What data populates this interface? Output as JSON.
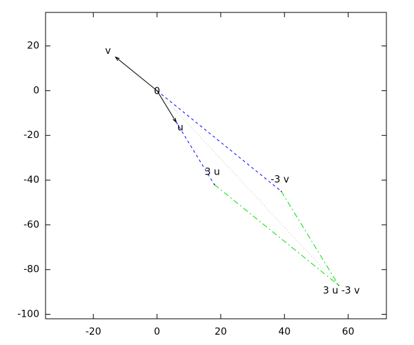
{
  "chart_data": {
    "type": "vector",
    "xlim": [
      -35,
      72
    ],
    "ylim": [
      -102,
      35
    ],
    "xticks": [
      -20,
      0,
      20,
      40,
      60
    ],
    "yticks": [
      20,
      0,
      -20,
      -40,
      -60,
      -80,
      -100
    ],
    "grid": false,
    "points": [
      {
        "label": "0",
        "x": 0,
        "y": 0
      },
      {
        "label": "v",
        "x": -13,
        "y": 15
      },
      {
        "label": "u",
        "x": 6,
        "y": -14
      },
      {
        "label": "3 u",
        "x": 18,
        "y": -42
      },
      {
        "label": "-3 v",
        "x": 39,
        "y": -45
      },
      {
        "label": "3 u -3 v",
        "x": 57,
        "y": -87
      }
    ],
    "series": [
      {
        "color": "#000000",
        "style": "solid",
        "arrow": true,
        "x": [
          0,
          -13
        ],
        "y": [
          0,
          15
        ]
      },
      {
        "color": "#000000",
        "style": "solid",
        "arrow": true,
        "x": [
          0,
          6
        ],
        "y": [
          0,
          -14
        ]
      },
      {
        "color": "#0000ff",
        "style": "dashed",
        "arrow": false,
        "x": [
          0,
          39
        ],
        "y": [
          0,
          -45
        ]
      },
      {
        "color": "#0000ff",
        "style": "dashed",
        "arrow": false,
        "x": [
          6,
          18
        ],
        "y": [
          -14,
          -42
        ]
      },
      {
        "color": "#00dd00",
        "style": "dashdot",
        "arrow": false,
        "x": [
          18,
          57
        ],
        "y": [
          -42,
          -87
        ]
      },
      {
        "color": "#00dd00",
        "style": "dashdot",
        "arrow": false,
        "x": [
          39,
          57
        ],
        "y": [
          -45,
          -87
        ]
      },
      {
        "color": "#bbbbbb",
        "style": "dotted",
        "arrow": false,
        "x": [
          0,
          57
        ],
        "y": [
          0,
          -87
        ]
      }
    ]
  }
}
